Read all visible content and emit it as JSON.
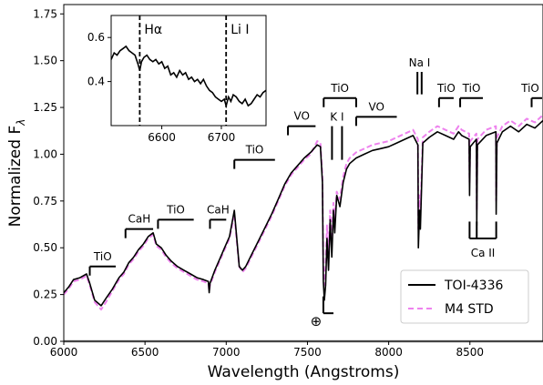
{
  "chart_data": {
    "type": "line",
    "xlabel": "Wavelength (Angstroms)",
    "ylabel_main": "Normalized F",
    "ylabel_sub": "λ",
    "xlim": [
      6000,
      8950
    ],
    "ylim": [
      0.0,
      1.8
    ],
    "xticks": [
      6000,
      6500,
      7000,
      7500,
      8000,
      8500
    ],
    "yticks": [
      0.0,
      0.25,
      0.5,
      0.75,
      1.0,
      1.25,
      1.5,
      1.75
    ],
    "legend": {
      "placement": "lower-right"
    },
    "series": [
      {
        "name": "TOI-4336",
        "color": "#000000",
        "style": "solid",
        "points": [
          [
            6000,
            0.26
          ],
          [
            6030,
            0.29
          ],
          [
            6060,
            0.33
          ],
          [
            6100,
            0.34
          ],
          [
            6140,
            0.36
          ],
          [
            6160,
            0.31
          ],
          [
            6190,
            0.22
          ],
          [
            6230,
            0.19
          ],
          [
            6260,
            0.23
          ],
          [
            6300,
            0.28
          ],
          [
            6340,
            0.34
          ],
          [
            6370,
            0.37
          ],
          [
            6400,
            0.42
          ],
          [
            6430,
            0.45
          ],
          [
            6460,
            0.49
          ],
          [
            6490,
            0.52
          ],
          [
            6520,
            0.56
          ],
          [
            6550,
            0.58
          ],
          [
            6570,
            0.52
          ],
          [
            6600,
            0.5
          ],
          [
            6630,
            0.46
          ],
          [
            6660,
            0.43
          ],
          [
            6700,
            0.4
          ],
          [
            6740,
            0.38
          ],
          [
            6780,
            0.36
          ],
          [
            6820,
            0.34
          ],
          [
            6860,
            0.33
          ],
          [
            6890,
            0.32
          ],
          [
            6895,
            0.26
          ],
          [
            6900,
            0.31
          ],
          [
            6930,
            0.38
          ],
          [
            6960,
            0.44
          ],
          [
            6990,
            0.5
          ],
          [
            7020,
            0.56
          ],
          [
            7050,
            0.7
          ],
          [
            7060,
            0.6
          ],
          [
            7080,
            0.4
          ],
          [
            7100,
            0.38
          ],
          [
            7120,
            0.4
          ],
          [
            7160,
            0.47
          ],
          [
            7200,
            0.54
          ],
          [
            7240,
            0.61
          ],
          [
            7280,
            0.68
          ],
          [
            7320,
            0.76
          ],
          [
            7360,
            0.84
          ],
          [
            7400,
            0.9
          ],
          [
            7440,
            0.94
          ],
          [
            7480,
            0.98
          ],
          [
            7520,
            1.01
          ],
          [
            7560,
            1.05
          ],
          [
            7580,
            1.04
          ],
          [
            7592,
            0.85
          ],
          [
            7598,
            0.32
          ],
          [
            7604,
            0.22
          ],
          [
            7612,
            0.3
          ],
          [
            7620,
            0.55
          ],
          [
            7630,
            0.38
          ],
          [
            7640,
            0.65
          ],
          [
            7650,
            0.45
          ],
          [
            7660,
            0.7
          ],
          [
            7668,
            0.58
          ],
          [
            7680,
            0.78
          ],
          [
            7700,
            0.72
          ],
          [
            7720,
            0.85
          ],
          [
            7740,
            0.92
          ],
          [
            7760,
            0.95
          ],
          [
            7800,
            0.98
          ],
          [
            7850,
            1.0
          ],
          [
            7900,
            1.02
          ],
          [
            7950,
            1.03
          ],
          [
            8000,
            1.04
          ],
          [
            8050,
            1.06
          ],
          [
            8100,
            1.08
          ],
          [
            8150,
            1.1
          ],
          [
            8180,
            1.05
          ],
          [
            8183,
            0.5
          ],
          [
            8190,
            0.7
          ],
          [
            8195,
            0.6
          ],
          [
            8210,
            1.06
          ],
          [
            8250,
            1.09
          ],
          [
            8300,
            1.12
          ],
          [
            8350,
            1.1
          ],
          [
            8400,
            1.08
          ],
          [
            8430,
            1.12
          ],
          [
            8450,
            1.1
          ],
          [
            8495,
            1.08
          ],
          [
            8498,
            0.78
          ],
          [
            8502,
            1.04
          ],
          [
            8540,
            1.08
          ],
          [
            8542,
            0.62
          ],
          [
            8546,
            1.05
          ],
          [
            8600,
            1.1
          ],
          [
            8660,
            1.12
          ],
          [
            8662,
            0.68
          ],
          [
            8666,
            1.06
          ],
          [
            8700,
            1.12
          ],
          [
            8750,
            1.15
          ],
          [
            8800,
            1.12
          ],
          [
            8850,
            1.16
          ],
          [
            8900,
            1.14
          ],
          [
            8950,
            1.18
          ]
        ]
      },
      {
        "name": "M4 STD",
        "color": "#ee82ee",
        "style": "dashed",
        "points": [
          [
            6000,
            0.25
          ],
          [
            6030,
            0.28
          ],
          [
            6060,
            0.32
          ],
          [
            6100,
            0.33
          ],
          [
            6140,
            0.35
          ],
          [
            6160,
            0.3
          ],
          [
            6190,
            0.21
          ],
          [
            6230,
            0.17
          ],
          [
            6260,
            0.21
          ],
          [
            6300,
            0.27
          ],
          [
            6340,
            0.33
          ],
          [
            6370,
            0.36
          ],
          [
            6400,
            0.41
          ],
          [
            6430,
            0.44
          ],
          [
            6460,
            0.48
          ],
          [
            6490,
            0.51
          ],
          [
            6520,
            0.55
          ],
          [
            6550,
            0.57
          ],
          [
            6570,
            0.51
          ],
          [
            6600,
            0.49
          ],
          [
            6630,
            0.45
          ],
          [
            6660,
            0.42
          ],
          [
            6700,
            0.39
          ],
          [
            6740,
            0.37
          ],
          [
            6780,
            0.35
          ],
          [
            6820,
            0.33
          ],
          [
            6860,
            0.32
          ],
          [
            6890,
            0.31
          ],
          [
            6895,
            0.27
          ],
          [
            6900,
            0.3
          ],
          [
            6930,
            0.37
          ],
          [
            6960,
            0.43
          ],
          [
            6990,
            0.49
          ],
          [
            7020,
            0.55
          ],
          [
            7050,
            0.68
          ],
          [
            7060,
            0.58
          ],
          [
            7080,
            0.4
          ],
          [
            7100,
            0.37
          ],
          [
            7120,
            0.39
          ],
          [
            7160,
            0.46
          ],
          [
            7200,
            0.53
          ],
          [
            7240,
            0.6
          ],
          [
            7280,
            0.67
          ],
          [
            7320,
            0.75
          ],
          [
            7360,
            0.83
          ],
          [
            7400,
            0.89
          ],
          [
            7440,
            0.93
          ],
          [
            7480,
            0.97
          ],
          [
            7520,
            1.0
          ],
          [
            7560,
            1.07
          ],
          [
            7580,
            1.06
          ],
          [
            7592,
            0.88
          ],
          [
            7598,
            0.4
          ],
          [
            7604,
            0.3
          ],
          [
            7612,
            0.4
          ],
          [
            7620,
            0.62
          ],
          [
            7630,
            0.45
          ],
          [
            7640,
            0.7
          ],
          [
            7650,
            0.52
          ],
          [
            7660,
            0.74
          ],
          [
            7668,
            0.64
          ],
          [
            7680,
            0.8
          ],
          [
            7700,
            0.76
          ],
          [
            7720,
            0.88
          ],
          [
            7740,
            0.95
          ],
          [
            7760,
            0.98
          ],
          [
            7800,
            1.01
          ],
          [
            7850,
            1.03
          ],
          [
            7900,
            1.05
          ],
          [
            7950,
            1.06
          ],
          [
            8000,
            1.07
          ],
          [
            8050,
            1.09
          ],
          [
            8100,
            1.11
          ],
          [
            8150,
            1.13
          ],
          [
            8180,
            1.08
          ],
          [
            8183,
            0.6
          ],
          [
            8190,
            0.78
          ],
          [
            8195,
            0.68
          ],
          [
            8210,
            1.09
          ],
          [
            8250,
            1.12
          ],
          [
            8300,
            1.15
          ],
          [
            8350,
            1.13
          ],
          [
            8400,
            1.11
          ],
          [
            8430,
            1.15
          ],
          [
            8450,
            1.13
          ],
          [
            8495,
            1.11
          ],
          [
            8498,
            0.85
          ],
          [
            8502,
            1.07
          ],
          [
            8540,
            1.11
          ],
          [
            8542,
            0.7
          ],
          [
            8546,
            1.08
          ],
          [
            8600,
            1.13
          ],
          [
            8660,
            1.15
          ],
          [
            8662,
            0.75
          ],
          [
            8666,
            1.09
          ],
          [
            8700,
            1.15
          ],
          [
            8750,
            1.18
          ],
          [
            8800,
            1.15
          ],
          [
            8850,
            1.19
          ],
          [
            8900,
            1.17
          ],
          [
            8950,
            1.21
          ]
        ]
      }
    ],
    "molecular_bands": [
      {
        "label": "TiO",
        "x1": 6160,
        "x2": 6320,
        "y": 0.4,
        "tick_left": true,
        "tick_right": false
      },
      {
        "label": "CaH",
        "x1": 6380,
        "x2": 6550,
        "y": 0.6,
        "tick_left": true,
        "tick_right": false
      },
      {
        "label": "TiO",
        "x1": 6580,
        "x2": 6800,
        "y": 0.65,
        "tick_left": true,
        "tick_right": false
      },
      {
        "label": "CaH",
        "x1": 6900,
        "x2": 7000,
        "y": 0.65,
        "tick_left": true,
        "tick_right": false
      },
      {
        "label": "TiO",
        "x1": 7050,
        "x2": 7300,
        "y": 0.97,
        "tick_left": true,
        "tick_right": false
      },
      {
        "label": "VO",
        "x1": 7380,
        "x2": 7550,
        "y": 1.15,
        "tick_left": true,
        "tick_right": false
      },
      {
        "label": "TiO",
        "x1": 7600,
        "x2": 7800,
        "y": 1.3,
        "tick_left": true,
        "tick_right": true
      },
      {
        "label": "VO",
        "x1": 7800,
        "x2": 8050,
        "y": 1.2,
        "tick_left": true,
        "tick_right": false
      },
      {
        "label": "TiO",
        "x1": 8310,
        "x2": 8400,
        "y": 1.3,
        "tick_left": true,
        "tick_right": false
      },
      {
        "label": "TiO",
        "x1": 8440,
        "x2": 8580,
        "y": 1.3,
        "tick_left": true,
        "tick_right": false
      },
      {
        "label": "TiO",
        "x1": 8880,
        "x2": 8950,
        "y": 1.3,
        "tick_left": true,
        "tick_right": false
      }
    ],
    "line_annotations": [
      {
        "label": "Na I",
        "x": 8190,
        "y_top": 1.44,
        "y_bottom": 1.32,
        "width": 14
      },
      {
        "label": "K I",
        "x": 7682,
        "y_top": 1.15,
        "y_bottom": 0.97,
        "width": 33
      }
    ],
    "ca_ii": {
      "label": "Ca II",
      "x": [
        8498,
        8542,
        8662
      ],
      "y_top": 0.64,
      "y_bottom": 0.55
    },
    "telluric": {
      "label": "⊕",
      "x": 7598,
      "x_end": 7660,
      "y_top": 0.24,
      "y_bottom": 0.15
    },
    "zero_line_y": 0.0,
    "inset": {
      "xlim": [
        6515,
        6775
      ],
      "ylim": [
        0.2,
        0.7
      ],
      "xticks": [
        6600,
        6700
      ],
      "yticks": [
        0.4,
        0.6
      ],
      "markers": [
        {
          "label": "Hα",
          "x": 6563
        },
        {
          "label": "Li I",
          "x": 6708
        }
      ],
      "points": [
        [
          6515,
          0.5
        ],
        [
          6520,
          0.53
        ],
        [
          6525,
          0.52
        ],
        [
          6530,
          0.54
        ],
        [
          6535,
          0.55
        ],
        [
          6540,
          0.56
        ],
        [
          6545,
          0.54
        ],
        [
          6550,
          0.53
        ],
        [
          6555,
          0.52
        ],
        [
          6560,
          0.48
        ],
        [
          6563,
          0.45
        ],
        [
          6566,
          0.49
        ],
        [
          6570,
          0.51
        ],
        [
          6575,
          0.52
        ],
        [
          6580,
          0.5
        ],
        [
          6585,
          0.49
        ],
        [
          6590,
          0.5
        ],
        [
          6595,
          0.48
        ],
        [
          6600,
          0.49
        ],
        [
          6605,
          0.46
        ],
        [
          6610,
          0.47
        ],
        [
          6615,
          0.43
        ],
        [
          6620,
          0.44
        ],
        [
          6625,
          0.42
        ],
        [
          6630,
          0.45
        ],
        [
          6635,
          0.43
        ],
        [
          6640,
          0.44
        ],
        [
          6645,
          0.41
        ],
        [
          6650,
          0.42
        ],
        [
          6655,
          0.4
        ],
        [
          6660,
          0.41
        ],
        [
          6665,
          0.39
        ],
        [
          6670,
          0.41
        ],
        [
          6675,
          0.38
        ],
        [
          6680,
          0.36
        ],
        [
          6685,
          0.35
        ],
        [
          6690,
          0.33
        ],
        [
          6695,
          0.32
        ],
        [
          6700,
          0.31
        ],
        [
          6705,
          0.32
        ],
        [
          6708,
          0.29
        ],
        [
          6712,
          0.33
        ],
        [
          6716,
          0.31
        ],
        [
          6720,
          0.34
        ],
        [
          6725,
          0.33
        ],
        [
          6730,
          0.31
        ],
        [
          6735,
          0.3
        ],
        [
          6740,
          0.32
        ],
        [
          6745,
          0.29
        ],
        [
          6750,
          0.3
        ],
        [
          6755,
          0.32
        ],
        [
          6760,
          0.34
        ],
        [
          6765,
          0.33
        ],
        [
          6770,
          0.35
        ],
        [
          6775,
          0.36
        ]
      ]
    }
  }
}
